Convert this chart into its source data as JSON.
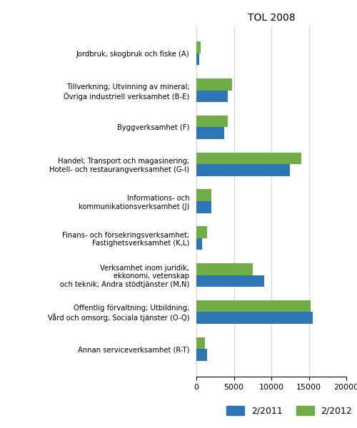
{
  "title": "TOL 2008",
  "categories": [
    "Jordbruk, skogbruk och fiske (A)",
    "Tillverkning; Utvinning av mineral;\nÖvriga industriell verksamhet (B-E)",
    "Byggverksamhet (F)",
    "Handel; Transport och magasinering;\nHotell- och restaurangverksamhet (G-I)",
    "Informations- och\nkommunikationsverksamhet (J)",
    "Finans- och försekringsverksamhet;\nFastighetsverksamhet (K,L)",
    "Verksamhet inom juridik,\nekkonomi, vetenskap\noch teknik; Andra stödtjänster (M,N)",
    "Offentlig förvaltning; Utbildning;\nVård och omsorg; Sociala tjänster (O-Q)",
    "Annan serviceverksamhet (R-T)"
  ],
  "values_2011": [
    400,
    4200,
    3700,
    12500,
    2000,
    800,
    9000,
    15500,
    1400
  ],
  "values_2012": [
    550,
    4800,
    4200,
    14000,
    2000,
    1400,
    7500,
    15200,
    1100
  ],
  "color_2011": "#2E75B6",
  "color_2012": "#70AD47",
  "legend_labels": [
    "2/2011",
    "2/2012"
  ],
  "xlim": [
    0,
    20000
  ],
  "xticks": [
    0,
    5000,
    10000,
    15000,
    20000
  ],
  "bar_height": 0.32,
  "figsize": [
    5.0,
    6.0
  ],
  "dpi": 100
}
